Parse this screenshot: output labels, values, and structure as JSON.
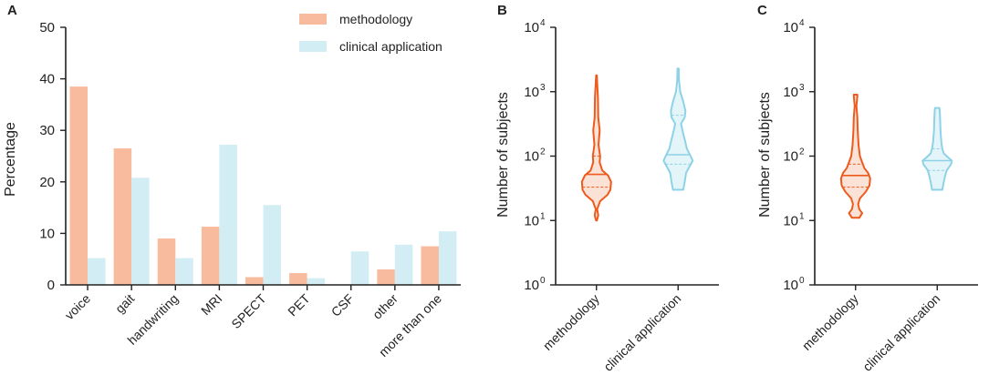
{
  "colors": {
    "methodology_fill": "#f9bb9e",
    "clinical_fill": "#d3edf5",
    "methodology_line": "#ee5a1c",
    "clinical_line": "#8dd2e6",
    "methodology_violin_fill": "#fbe2d6",
    "clinical_violin_fill": "#e4f5fa",
    "axis": "#222222"
  },
  "chart_data": [
    {
      "panel": "A",
      "type": "bar",
      "ylabel": "Percentage",
      "ylim": [
        0,
        50
      ],
      "yticks": [
        "0",
        "10",
        "20",
        "30",
        "40",
        "50"
      ],
      "categories": [
        "voice",
        "gait",
        "handwriting",
        "MRI",
        "SPECT",
        "PET",
        "CSF",
        "other",
        "more than one"
      ],
      "legend": [
        "methodology",
        "clinical application"
      ],
      "legend_position": "top-right",
      "series": [
        {
          "name": "methodology",
          "values": [
            38.5,
            26.5,
            9.0,
            11.3,
            1.5,
            2.3,
            0,
            3.0,
            7.5
          ]
        },
        {
          "name": "clinical application",
          "values": [
            5.2,
            20.8,
            5.2,
            27.2,
            15.5,
            1.3,
            6.5,
            7.8,
            10.4
          ]
        }
      ]
    },
    {
      "panel": "B",
      "type": "violin",
      "ylabel": "Number of subjects",
      "yscale": "log10",
      "ylim": [
        1,
        10000
      ],
      "yticks": [
        {
          "base": "10",
          "exp": "0"
        },
        {
          "base": "10",
          "exp": "1"
        },
        {
          "base": "10",
          "exp": "2"
        },
        {
          "base": "10",
          "exp": "3"
        },
        {
          "base": "10",
          "exp": "4"
        }
      ],
      "categories": [
        "methodology",
        "clinical application"
      ],
      "violins": [
        {
          "name": "methodology",
          "min": 10,
          "max": 1800,
          "q1": 33,
          "median": 52,
          "q3": 100,
          "profile": [
            [
              10,
              0.03
            ],
            [
              12,
              0.12
            ],
            [
              15,
              0.05
            ],
            [
              20,
              0.25
            ],
            [
              25,
              0.75
            ],
            [
              30,
              0.95
            ],
            [
              40,
              1.0
            ],
            [
              50,
              0.8
            ],
            [
              60,
              0.4
            ],
            [
              80,
              0.22
            ],
            [
              100,
              0.25
            ],
            [
              150,
              0.14
            ],
            [
              250,
              0.22
            ],
            [
              400,
              0.12
            ],
            [
              800,
              0.1
            ],
            [
              1800,
              0.02
            ]
          ]
        },
        {
          "name": "clinical application",
          "min": 30,
          "max": 2300,
          "q1": 75,
          "median": 105,
          "q3": 430,
          "profile": [
            [
              30,
              0.35
            ],
            [
              40,
              0.45
            ],
            [
              55,
              0.55
            ],
            [
              70,
              0.8
            ],
            [
              85,
              1.0
            ],
            [
              100,
              0.85
            ],
            [
              130,
              0.6
            ],
            [
              180,
              0.45
            ],
            [
              250,
              0.3
            ],
            [
              320,
              0.2
            ],
            [
              400,
              0.45
            ],
            [
              500,
              0.5
            ],
            [
              700,
              0.35
            ],
            [
              1000,
              0.15
            ],
            [
              1500,
              0.06
            ],
            [
              2300,
              0.04
            ]
          ]
        }
      ]
    },
    {
      "panel": "C",
      "type": "violin",
      "ylabel": "Number of subjects",
      "yscale": "log10",
      "ylim": [
        1,
        10000
      ],
      "yticks": [
        {
          "base": "10",
          "exp": "0"
        },
        {
          "base": "10",
          "exp": "1"
        },
        {
          "base": "10",
          "exp": "2"
        },
        {
          "base": "10",
          "exp": "3"
        },
        {
          "base": "10",
          "exp": "4"
        }
      ],
      "categories": [
        "methodology",
        "clinical application"
      ],
      "violins": [
        {
          "name": "methodology",
          "min": 11,
          "max": 900,
          "q1": 33,
          "median": 50,
          "q3": 75,
          "profile": [
            [
              11,
              0.25
            ],
            [
              13,
              0.45
            ],
            [
              15,
              0.25
            ],
            [
              18,
              0.18
            ],
            [
              22,
              0.3
            ],
            [
              28,
              0.7
            ],
            [
              35,
              0.95
            ],
            [
              45,
              1.0
            ],
            [
              55,
              0.85
            ],
            [
              65,
              0.6
            ],
            [
              80,
              0.45
            ],
            [
              100,
              0.3
            ],
            [
              150,
              0.2
            ],
            [
              250,
              0.15
            ],
            [
              400,
              0.12
            ],
            [
              600,
              0.06
            ],
            [
              850,
              0.12
            ],
            [
              900,
              0.12
            ]
          ]
        },
        {
          "name": "clinical application",
          "min": 30,
          "max": 560,
          "q1": 60,
          "median": 85,
          "q3": 130,
          "profile": [
            [
              30,
              0.35
            ],
            [
              40,
              0.45
            ],
            [
              50,
              0.55
            ],
            [
              60,
              0.65
            ],
            [
              75,
              0.95
            ],
            [
              85,
              1.0
            ],
            [
              95,
              0.75
            ],
            [
              110,
              0.45
            ],
            [
              130,
              0.35
            ],
            [
              170,
              0.28
            ],
            [
              250,
              0.22
            ],
            [
              350,
              0.2
            ],
            [
              480,
              0.18
            ],
            [
              560,
              0.15
            ]
          ]
        }
      ]
    }
  ]
}
